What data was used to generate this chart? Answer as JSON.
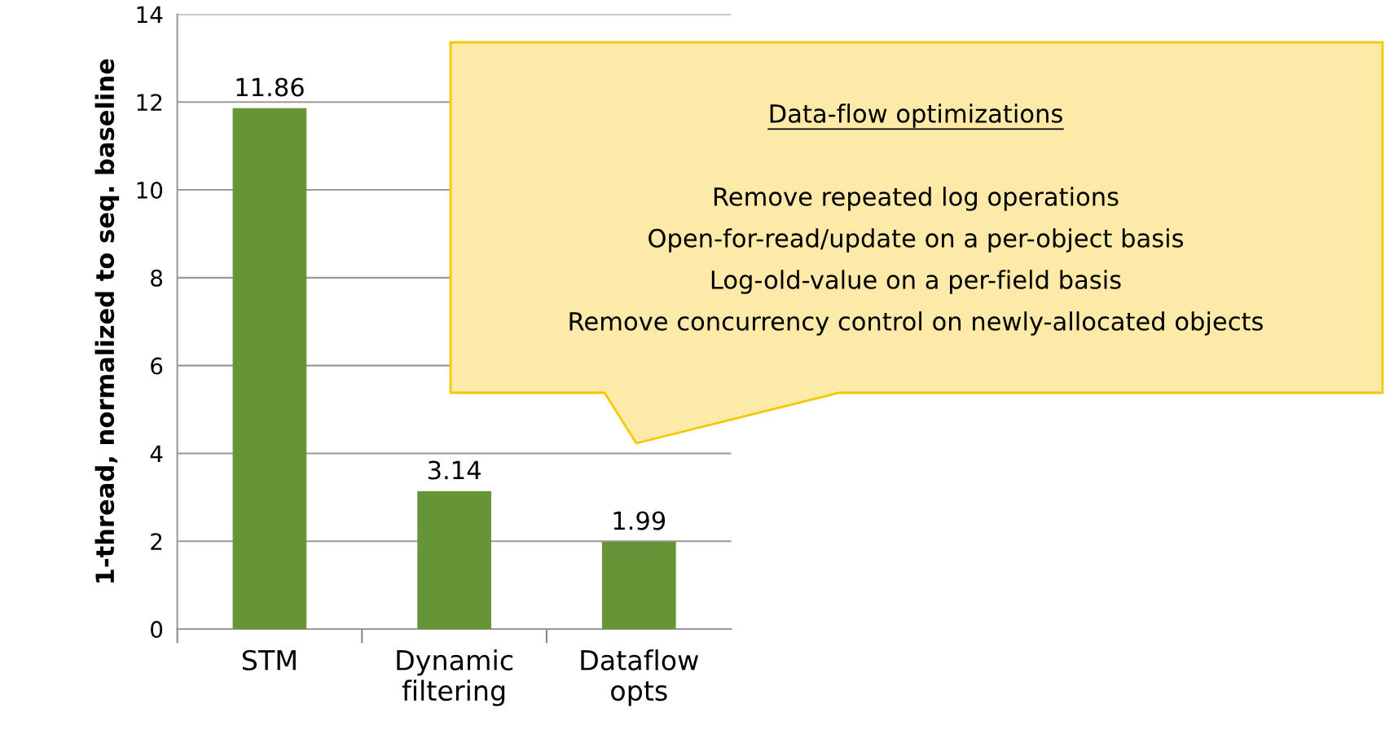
{
  "chart_data": {
    "type": "bar",
    "ylabel": "1-thread, normalized to seq. baseline",
    "categories": [
      "STM",
      "Dynamic\nfiltering",
      "Dataflow\nopts"
    ],
    "values": [
      11.86,
      3.14,
      1.99
    ],
    "color": "#669436",
    "ylim": [
      0,
      14
    ],
    "yticks": [
      0,
      2,
      4,
      6,
      8,
      10,
      12,
      14
    ],
    "grid": "y",
    "data_labels": true,
    "annotations": [
      "Data-flow optimizations",
      "Remove repeated log operations",
      "Open-for-read/update on a per-object basis",
      "Log-old-value on a per-field basis",
      "Remove concurrency control on newly-allocated objects"
    ]
  }
}
